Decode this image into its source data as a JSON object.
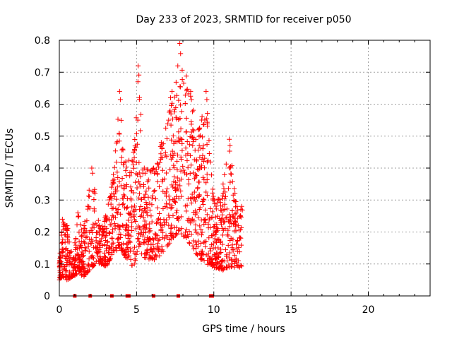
{
  "chart_data": {
    "type": "scatter",
    "title": "Day 233 of 2023, SRMTID for receiver p050",
    "xlabel": "GPS time / hours",
    "ylabel": "SRMTID / TECUs",
    "xlim": [
      0,
      24
    ],
    "ylim": [
      0,
      0.8
    ],
    "xticks": [
      0,
      5,
      10,
      15,
      20
    ],
    "yticks": [
      0,
      0.1,
      0.2,
      0.3,
      0.4,
      0.5,
      0.6,
      0.7,
      0.8
    ],
    "ytick_labels": [
      "0",
      "0.1",
      "0.2",
      "0.3",
      "0.4",
      "0.5",
      "0.6",
      "0.7",
      "0.8"
    ],
    "grid": true,
    "marker": "+",
    "series_color": "#ff0000",
    "envelope_note": "approximate upper/lower envelope of the red + markers, in data units",
    "envelope": [
      {
        "x": 0.0,
        "low": 0.05,
        "high": 0.1
      },
      {
        "x": 0.2,
        "low": 0.06,
        "high": 0.24
      },
      {
        "x": 0.5,
        "low": 0.05,
        "high": 0.22
      },
      {
        "x": 0.9,
        "low": 0.06,
        "high": 0.12
      },
      {
        "x": 1.2,
        "low": 0.07,
        "high": 0.26
      },
      {
        "x": 1.6,
        "low": 0.06,
        "high": 0.22
      },
      {
        "x": 2.1,
        "low": 0.09,
        "high": 0.4
      },
      {
        "x": 2.6,
        "low": 0.1,
        "high": 0.22
      },
      {
        "x": 3.0,
        "low": 0.09,
        "high": 0.25
      },
      {
        "x": 3.5,
        "low": 0.13,
        "high": 0.38
      },
      {
        "x": 3.9,
        "low": 0.15,
        "high": 0.64
      },
      {
        "x": 4.3,
        "low": 0.12,
        "high": 0.42
      },
      {
        "x": 4.8,
        "low": 0.09,
        "high": 0.45
      },
      {
        "x": 5.1,
        "low": 0.14,
        "high": 0.72
      },
      {
        "x": 5.5,
        "low": 0.12,
        "high": 0.4
      },
      {
        "x": 6.1,
        "low": 0.11,
        "high": 0.4
      },
      {
        "x": 6.6,
        "low": 0.13,
        "high": 0.48
      },
      {
        "x": 7.2,
        "low": 0.17,
        "high": 0.62
      },
      {
        "x": 7.8,
        "low": 0.2,
        "high": 0.79
      },
      {
        "x": 8.5,
        "low": 0.16,
        "high": 0.64
      },
      {
        "x": 9.0,
        "low": 0.12,
        "high": 0.52
      },
      {
        "x": 9.5,
        "low": 0.1,
        "high": 0.64
      },
      {
        "x": 10.0,
        "low": 0.09,
        "high": 0.3
      },
      {
        "x": 10.6,
        "low": 0.08,
        "high": 0.35
      },
      {
        "x": 11.0,
        "low": 0.09,
        "high": 0.49
      },
      {
        "x": 11.5,
        "low": 0.09,
        "high": 0.28
      },
      {
        "x": 11.8,
        "low": 0.09,
        "high": 0.28
      }
    ],
    "zero_markers_x": [
      1.0,
      2.0,
      3.4,
      4.4,
      4.5,
      6.1,
      7.7,
      9.8,
      9.9
    ]
  }
}
